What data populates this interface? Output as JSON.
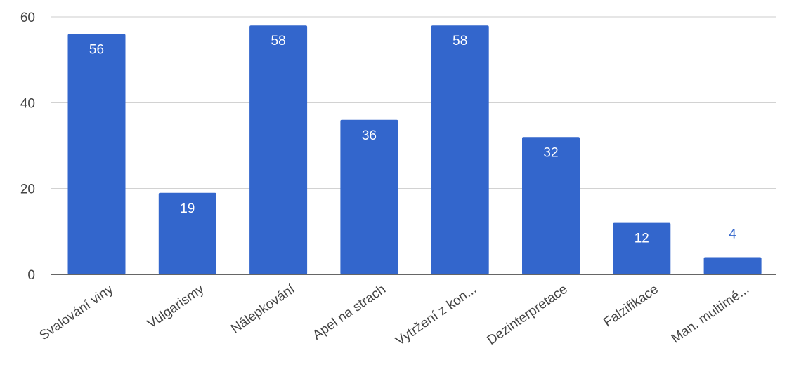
{
  "chart_data": {
    "type": "bar",
    "categories": [
      "Svalování viny",
      "Vulgarismy",
      "Nálepkování",
      "Apel na strach",
      "Vytržení z kon...",
      "Dezinterpretace",
      "Falzifikace",
      "Man. multimé..."
    ],
    "values": [
      56,
      19,
      58,
      36,
      58,
      32,
      12,
      4
    ],
    "data_labels": [
      "56",
      "19",
      "58",
      "36",
      "58",
      "32",
      "12",
      "4"
    ],
    "y_ticks": [
      "0",
      "20",
      "40",
      "60"
    ],
    "ylim": [
      0,
      60
    ],
    "grid": true,
    "legend": "none",
    "title": "",
    "xlabel": "",
    "ylabel": "",
    "colors": {
      "bar": "#3366cc",
      "grid": "#cccccc",
      "baseline": "#333333",
      "label_inside": "#ffffff",
      "label_outside": "#3366cc",
      "text": "#444444"
    }
  }
}
